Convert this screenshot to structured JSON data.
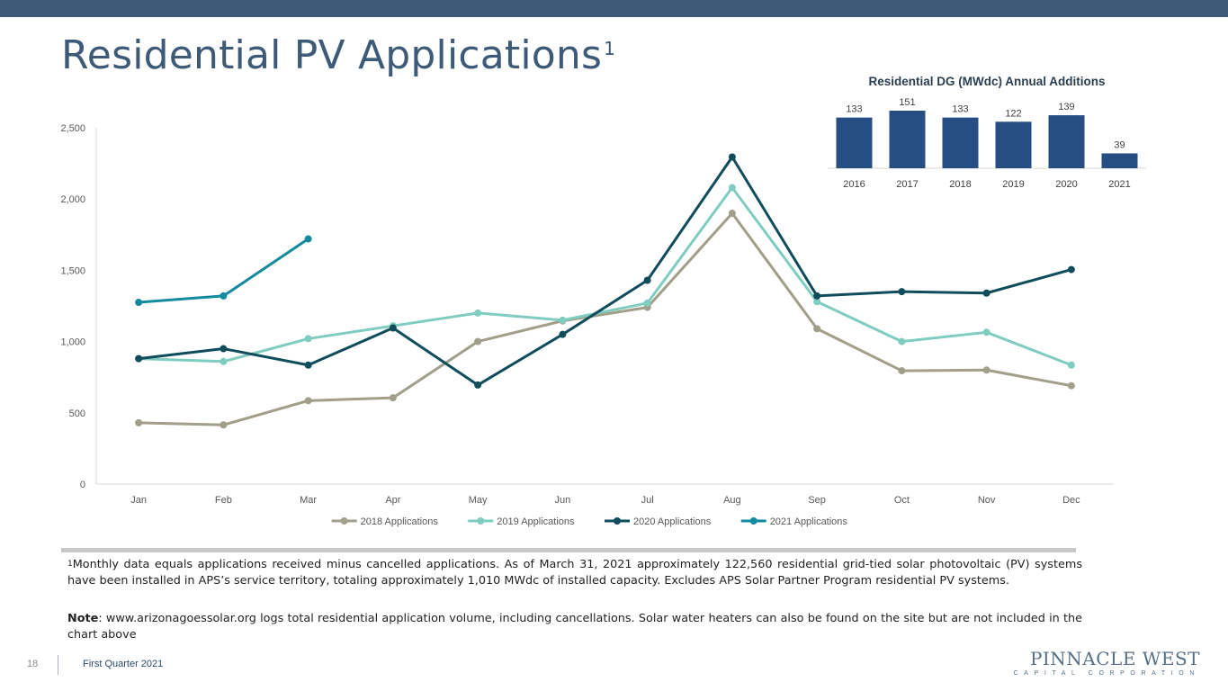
{
  "slide": {
    "title": "Residential PV Applications",
    "title_sup": "1",
    "page_number": "18",
    "footer_label": "First Quarter 2021",
    "logo_main": "PINNACLE WEST",
    "logo_sub": "CAPITAL CORPORATION"
  },
  "footnote": {
    "marker": "1",
    "text": "Monthly data equals applications received minus cancelled applications. As of March 31, 2021 approximately 122,560 residential grid-tied solar photovoltaic (PV) systems have been installed in APS’s service territory, totaling approximately 1,010 MWdc of installed capacity. Excludes APS Solar Partner Program residential PV systems."
  },
  "note": {
    "label": "Note",
    "text": ": www.arizonagoessolar.org logs total residential application volume, including cancellations. Solar water heaters can also be found on the site but are not included in the chart above"
  },
  "chart_data": [
    {
      "type": "line",
      "title": "",
      "xlabel": "",
      "ylabel": "",
      "categories": [
        "Jan",
        "Feb",
        "Mar",
        "Apr",
        "May",
        "Jun",
        "Jul",
        "Aug",
        "Sep",
        "Oct",
        "Nov",
        "Dec"
      ],
      "ylim": [
        0,
        2500
      ],
      "yticks": [
        0,
        500,
        1000,
        1500,
        2000,
        2500
      ],
      "ytick_labels": [
        "0",
        "500",
        "1,000",
        "1,500",
        "2,000",
        "2,500"
      ],
      "grid": false,
      "legend": "bottom",
      "series": [
        {
          "name": "2018 Applications",
          "color": "#a19e89",
          "values": [
            430,
            415,
            585,
            605,
            1000,
            1145,
            1240,
            1900,
            1090,
            795,
            800,
            690
          ]
        },
        {
          "name": "2019 Applications",
          "color": "#7fccc0",
          "values": [
            880,
            860,
            1020,
            1110,
            1200,
            1150,
            1270,
            2080,
            1280,
            1000,
            1065,
            835
          ]
        },
        {
          "name": "2020 Applications",
          "color": "#0f4c5c",
          "values": [
            880,
            950,
            835,
            1095,
            695,
            1050,
            1430,
            2295,
            1320,
            1350,
            1340,
            1505
          ]
        },
        {
          "name": "2021 Applications",
          "color": "#138a9e",
          "values": [
            1275,
            1320,
            1720,
            null,
            null,
            null,
            null,
            null,
            null,
            null,
            null,
            null
          ]
        }
      ]
    },
    {
      "type": "bar",
      "title": "Residential DG (MWdc) Annual Additions",
      "xlabel": "",
      "ylabel": "",
      "categories": [
        "2016",
        "2017",
        "2018",
        "2019",
        "2020",
        "2021"
      ],
      "values": [
        133,
        151,
        133,
        122,
        139,
        39
      ],
      "value_labels": [
        "133",
        "151",
        "133",
        "122",
        "139",
        "39"
      ],
      "ylim": [
        0,
        151
      ],
      "color": "#264e83"
    }
  ]
}
